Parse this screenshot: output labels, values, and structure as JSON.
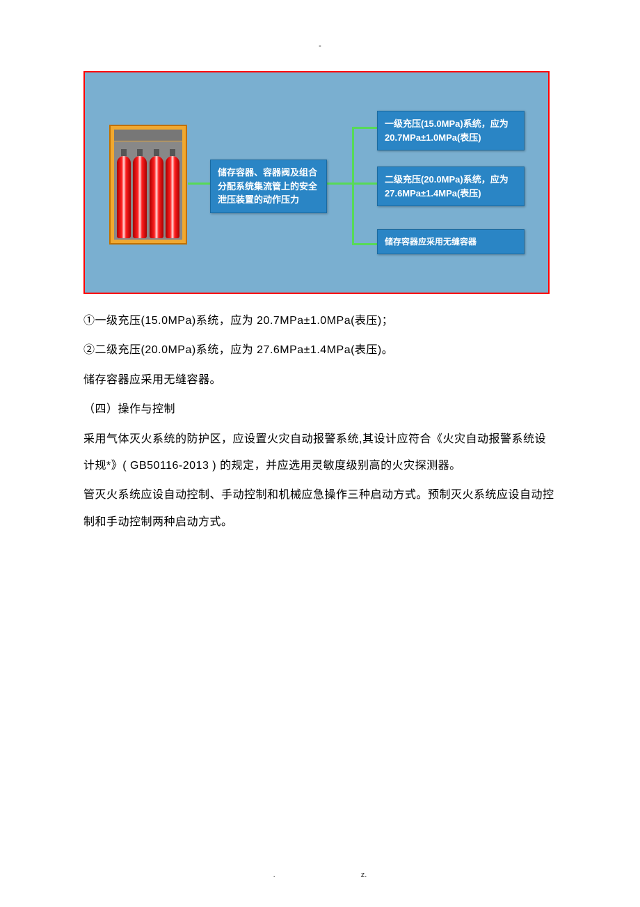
{
  "header_dash": "-",
  "diagram": {
    "bg_color": "#7aafd0",
    "border_color": "#ff0000",
    "connector_color": "#57da57",
    "box_bg": "#2a85c5",
    "box_text_color": "#ffffff",
    "center_label": "储存容器、容器阀及组合分配系统集流管上的安全泄压装置的动作压力",
    "right1": "一级充压(15.0MPa)系统，应为20.7MPa±1.0MPa(表压)",
    "right2": "二级充压(20.0MPa)系统，应为27.6MPa±1.4MPa(表压)",
    "right3": "储存容器应采用无缝容器",
    "cylinder_count": 4
  },
  "paragraphs": {
    "p1": "①一级充压(15.0MPa)系统，应为 20.7MPa±1.0MPa(表压)；",
    "p2": "②二级充压(20.0MPa)系统，应为 27.6MPa±1.4MPa(表压)。",
    "p3": "储存容器应采用无缝容器。",
    "p4": "（四）操作与控制",
    "p5": "采用气体灭火系统的防护区，应设置火灾自动报警系统,其设计应符合《火灾自动报警系统设计规*》( GB50116-2013 ) 的规定，并应选用灵敏度级别高的火灾探测器。",
    "p6": "管灭火系统应设自动控制、手动控制和机械应急操作三种启动方式。预制灭火系统应设自动控制和手动控制两种启动方式。"
  },
  "footer": {
    "left": ".",
    "right": "z."
  }
}
